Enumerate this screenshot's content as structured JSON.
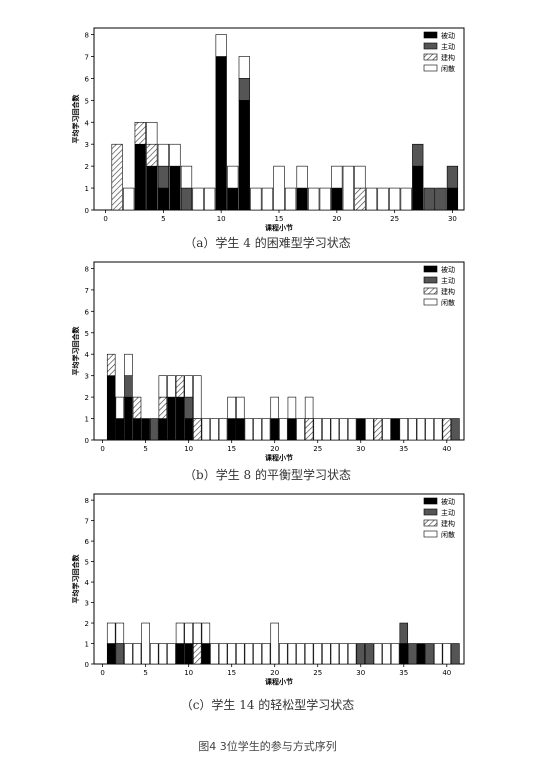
{
  "figure_caption": "图4 3位学生的参与方式序列",
  "legend_colors": {
    "被动": "#000000",
    "主动": "#555555",
    "建构": "hatch",
    "闲散": "#ffffff"
  },
  "chart_data": [
    {
      "type": "bar",
      "stacked": true,
      "caption": "（a）学生 4 的困难型学习状态",
      "xlabel": "课程小节",
      "ylabel": "平均学习回合数",
      "xlim": [
        -1,
        31
      ],
      "ylim": [
        0,
        8.3
      ],
      "xticks": [
        0,
        5,
        10,
        15,
        20,
        25,
        30
      ],
      "yticks": [
        0,
        1,
        2,
        3,
        4,
        5,
        6,
        7,
        8
      ],
      "legend": [
        "被动",
        "主动",
        "建构",
        "闲散"
      ],
      "legend_position": "top-right",
      "grid": false,
      "x": [
        1,
        2,
        3,
        4,
        5,
        6,
        7,
        8,
        9,
        10,
        11,
        12,
        13,
        14,
        15,
        16,
        17,
        18,
        19,
        20,
        21,
        22,
        23,
        24,
        25,
        26,
        27,
        28,
        29,
        30
      ],
      "series": [
        {
          "name": "被动",
          "values": [
            0,
            0,
            3,
            2,
            1,
            2,
            0,
            0,
            0,
            7,
            1,
            5,
            0,
            0,
            0,
            0,
            1,
            0,
            0,
            1,
            0,
            0,
            0,
            0,
            0,
            0,
            2,
            0,
            0,
            1
          ]
        },
        {
          "name": "主动",
          "values": [
            0,
            0,
            0,
            0,
            1,
            0,
            1,
            0,
            0,
            0,
            0,
            1,
            0,
            0,
            0,
            0,
            0,
            0,
            0,
            0,
            0,
            0,
            0,
            0,
            0,
            0,
            1,
            1,
            1,
            1
          ]
        },
        {
          "name": "建构",
          "values": [
            3,
            0,
            1,
            1,
            0,
            0,
            0,
            0,
            0,
            0,
            0,
            0,
            0,
            0,
            0,
            0,
            0,
            0,
            0,
            0,
            0,
            1,
            0,
            0,
            0,
            0,
            0,
            0,
            0,
            0
          ]
        },
        {
          "name": "闲散",
          "values": [
            0,
            1,
            0,
            1,
            1,
            1,
            1,
            1,
            1,
            1,
            1,
            1,
            1,
            1,
            2,
            1,
            1,
            1,
            1,
            1,
            2,
            1,
            1,
            1,
            1,
            1,
            0,
            0,
            0,
            0
          ]
        }
      ]
    },
    {
      "type": "bar",
      "stacked": true,
      "caption": "（b）学生 8 的平衡型学习状态",
      "xlabel": "课程小节",
      "ylabel": "平均学习回合数",
      "xlim": [
        -1,
        42
      ],
      "ylim": [
        0,
        8.3
      ],
      "xticks": [
        0,
        5,
        10,
        15,
        20,
        25,
        30,
        35,
        40
      ],
      "yticks": [
        0,
        1,
        2,
        3,
        4,
        5,
        6,
        7,
        8
      ],
      "legend": [
        "被动",
        "主动",
        "建构",
        "闲散"
      ],
      "legend_position": "top-right",
      "grid": false,
      "x": [
        1,
        2,
        3,
        4,
        5,
        6,
        7,
        8,
        9,
        10,
        11,
        12,
        13,
        14,
        15,
        16,
        17,
        18,
        19,
        20,
        21,
        22,
        23,
        24,
        25,
        26,
        27,
        28,
        29,
        30,
        31,
        32,
        33,
        34,
        35,
        36,
        37,
        38,
        39,
        40,
        41
      ],
      "series": [
        {
          "name": "被动",
          "values": [
            3,
            1,
            2,
            1,
            1,
            0,
            1,
            2,
            2,
            1,
            0,
            0,
            0,
            0,
            1,
            1,
            0,
            0,
            0,
            1,
            0,
            1,
            0,
            0,
            0,
            0,
            0,
            0,
            0,
            1,
            0,
            0,
            0,
            1,
            0,
            0,
            0,
            0,
            0,
            0,
            0
          ]
        },
        {
          "name": "主动",
          "values": [
            0,
            0,
            1,
            0,
            0,
            1,
            0,
            0,
            0,
            1,
            0,
            0,
            0,
            0,
            0,
            0,
            0,
            0,
            0,
            0,
            0,
            0,
            0,
            0,
            0,
            0,
            0,
            0,
            0,
            0,
            0,
            0,
            0,
            0,
            0,
            0,
            0,
            0,
            0,
            0,
            1
          ]
        },
        {
          "name": "建构",
          "values": [
            1,
            0,
            0,
            1,
            0,
            0,
            1,
            0,
            1,
            0,
            1,
            0,
            0,
            0,
            0,
            0,
            0,
            0,
            0,
            0,
            0,
            0,
            0,
            1,
            0,
            0,
            0,
            0,
            0,
            0,
            0,
            1,
            0,
            0,
            0,
            0,
            0,
            0,
            0,
            1,
            0
          ]
        },
        {
          "name": "闲散",
          "values": [
            0,
            1,
            1,
            0,
            0,
            0,
            1,
            1,
            0,
            1,
            2,
            1,
            1,
            1,
            1,
            1,
            1,
            1,
            1,
            1,
            1,
            1,
            1,
            1,
            1,
            1,
            1,
            1,
            1,
            0,
            1,
            0,
            1,
            0,
            1,
            1,
            1,
            1,
            1,
            0,
            0
          ]
        }
      ]
    },
    {
      "type": "bar",
      "stacked": true,
      "caption": "（c）学生 14 的轻松型学习状态",
      "xlabel": "课程小节",
      "ylabel": "平均学习回合数",
      "xlim": [
        -1,
        42
      ],
      "ylim": [
        0,
        8.3
      ],
      "xticks": [
        0,
        5,
        10,
        15,
        20,
        25,
        30,
        35,
        40
      ],
      "yticks": [
        0,
        1,
        2,
        3,
        4,
        5,
        6,
        7,
        8
      ],
      "legend": [
        "被动",
        "主动",
        "建构",
        "闲散"
      ],
      "legend_position": "top-right",
      "grid": false,
      "x": [
        1,
        2,
        3,
        4,
        5,
        6,
        7,
        8,
        9,
        10,
        11,
        12,
        13,
        14,
        15,
        16,
        17,
        18,
        19,
        20,
        21,
        22,
        23,
        24,
        25,
        26,
        27,
        28,
        29,
        30,
        31,
        32,
        33,
        34,
        35,
        36,
        37,
        38,
        39,
        40,
        41
      ],
      "series": [
        {
          "name": "被动",
          "values": [
            1,
            0,
            0,
            0,
            0,
            0,
            0,
            0,
            1,
            1,
            0,
            1,
            0,
            0,
            0,
            0,
            0,
            0,
            0,
            0,
            0,
            0,
            0,
            0,
            0,
            0,
            0,
            0,
            0,
            0,
            0,
            0,
            0,
            0,
            1,
            0,
            1,
            0,
            0,
            0,
            0
          ]
        },
        {
          "name": "主动",
          "values": [
            0,
            1,
            0,
            0,
            0,
            0,
            0,
            0,
            0,
            0,
            0,
            0,
            0,
            0,
            0,
            0,
            0,
            0,
            0,
            0,
            0,
            0,
            0,
            0,
            0,
            0,
            0,
            0,
            0,
            1,
            1,
            0,
            0,
            0,
            1,
            1,
            0,
            1,
            0,
            0,
            1
          ]
        },
        {
          "name": "建构",
          "values": [
            0,
            0,
            0,
            0,
            0,
            0,
            0,
            0,
            0,
            0,
            1,
            0,
            0,
            0,
            0,
            0,
            0,
            0,
            0,
            0,
            0,
            0,
            0,
            0,
            0,
            0,
            0,
            0,
            0,
            0,
            0,
            0,
            0,
            0,
            0,
            0,
            0,
            0,
            0,
            0,
            0
          ]
        },
        {
          "name": "闲散",
          "values": [
            1,
            1,
            1,
            1,
            2,
            1,
            1,
            1,
            1,
            1,
            1,
            1,
            1,
            1,
            1,
            1,
            1,
            1,
            1,
            2,
            1,
            1,
            1,
            1,
            1,
            1,
            1,
            1,
            1,
            0,
            0,
            1,
            1,
            1,
            0,
            0,
            0,
            0,
            1,
            1,
            0
          ]
        }
      ]
    }
  ]
}
